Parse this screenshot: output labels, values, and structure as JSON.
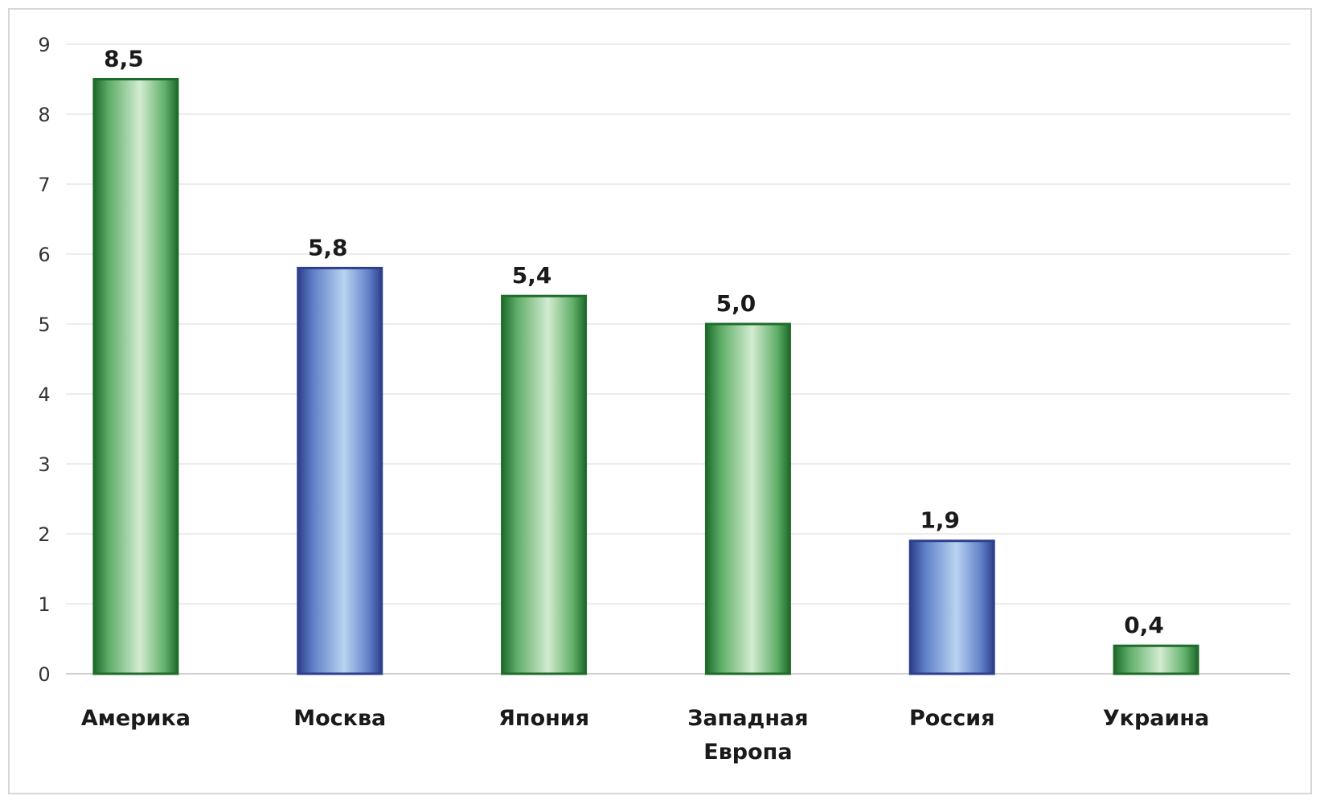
{
  "chart_data": {
    "type": "bar",
    "categories": [
      "Америка",
      "Москва",
      "Япония",
      "Западная Европа",
      "Россия",
      "Украина"
    ],
    "values": [
      8.5,
      5.8,
      5.4,
      5.0,
      1.9,
      0.4
    ],
    "value_labels": [
      "8,5",
      "5,8",
      "5,4",
      "5,0",
      "1,9",
      "0,4"
    ],
    "category_label_lines": [
      [
        "Америка"
      ],
      [
        "Москва"
      ],
      [
        "Япония"
      ],
      [
        "Западная",
        "Европа"
      ],
      [
        "Россия"
      ],
      [
        "Украина"
      ]
    ],
    "bar_colors": [
      "green",
      "blue",
      "green",
      "green",
      "blue",
      "green"
    ],
    "ylim": [
      0,
      9
    ],
    "yticks": [
      0,
      1,
      2,
      3,
      4,
      5,
      6,
      7,
      8,
      9
    ],
    "grid": true,
    "legend": "none",
    "title": "",
    "xlabel": "",
    "ylabel": ""
  },
  "colors": {
    "green_dark": "#1f6b2c",
    "green_mid": "#5fae69",
    "green_light": "#d3ecd0",
    "blue_dark": "#2e3f8c",
    "blue_mid": "#5f80c8",
    "blue_light": "#b9d3f0",
    "grid": "#ececec",
    "axis": "#cfcfcf"
  }
}
